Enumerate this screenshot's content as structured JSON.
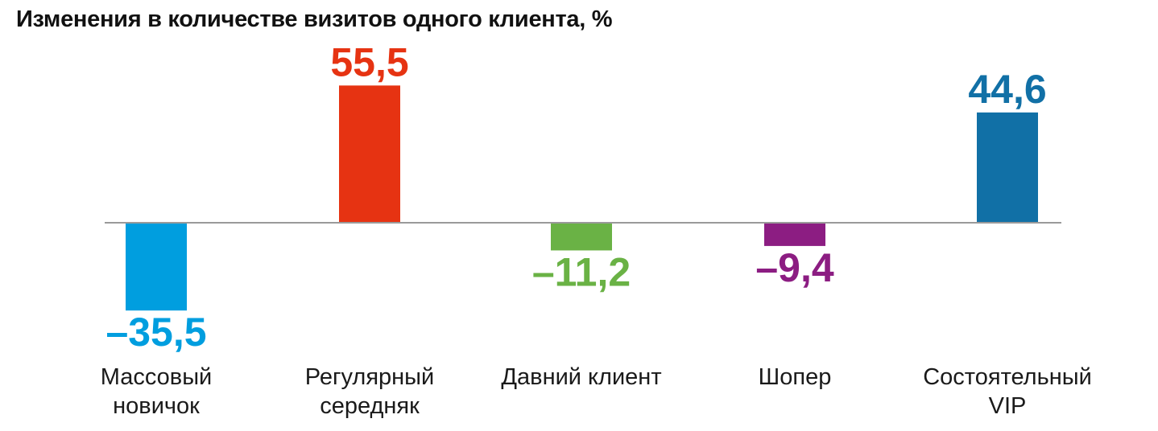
{
  "chart_data": {
    "type": "bar",
    "title": "Изменения в количестве визитов одного клиента, %",
    "xlabel": "",
    "ylabel": "",
    "ylim": [
      -35.5,
      55.5
    ],
    "grid": false,
    "legend": "none",
    "categories": [
      [
        "Массовый",
        "новичок"
      ],
      [
        "Регулярный",
        "середняк"
      ],
      [
        "Давний клиент"
      ],
      [
        "Шопер"
      ],
      [
        "Состоятельный",
        "VIP"
      ]
    ],
    "values": [
      -35.5,
      55.5,
      -11.2,
      -9.4,
      44.6
    ],
    "value_labels": [
      "–35,5",
      "55,5",
      "–11,2",
      "–9,4",
      "44,6"
    ],
    "colors": [
      "#009EDF",
      "#E63312",
      "#6AB245",
      "#8C1D82",
      "#1170A6"
    ],
    "axis_color": "#9A9A9A"
  }
}
